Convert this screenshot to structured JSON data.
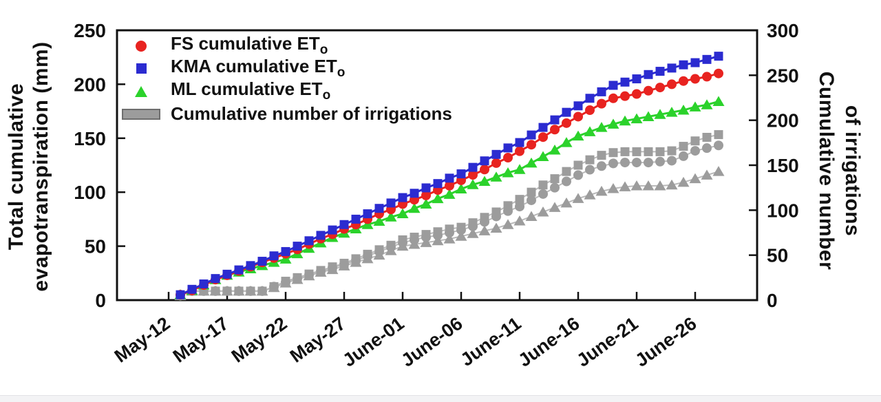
{
  "figure": {
    "left_axis": {
      "title_line1": "Total cumulative",
      "title_line2": "evapotranspiration (mm)"
    },
    "right_axis": {
      "title_line1": "Cumulative number",
      "title_line2": "of irrigations"
    },
    "legend": [
      {
        "label": "FS cumulative ET",
        "sub": "o",
        "marker": "circle-icon",
        "color": "#e82320"
      },
      {
        "label": "KMA cumulative ET",
        "sub": "o",
        "marker": "square-icon",
        "color": "#2b2bd0"
      },
      {
        "label": "ML cumulative ET",
        "sub": "o",
        "marker": "triangle-icon",
        "color": "#2bd22b"
      },
      {
        "label": "Cumulative number of irrigations",
        "sub": "",
        "marker": "bar-icon",
        "color": "#9c9c9c"
      }
    ]
  },
  "chart_data": {
    "type": "line",
    "title": "",
    "xlabel": "",
    "left_ylabel": "Total cumulative evapotranspiration (mm)",
    "right_ylabel": "Cumulative number of irrigations",
    "left_ylim": [
      0,
      250
    ],
    "right_ylim": [
      0,
      300
    ],
    "left_ticks": [
      0,
      50,
      100,
      150,
      200,
      250
    ],
    "right_ticks": [
      0,
      50,
      100,
      150,
      200,
      250,
      300
    ],
    "x_ticks": [
      {
        "label": "May-12",
        "day": 0
      },
      {
        "label": "May-17",
        "day": 5
      },
      {
        "label": "May-22",
        "day": 10
      },
      {
        "label": "May-27",
        "day": 15
      },
      {
        "label": "June-01",
        "day": 20
      },
      {
        "label": "June-06",
        "day": 25
      },
      {
        "label": "June-11",
        "day": 30
      },
      {
        "label": "June-16",
        "day": 35
      },
      {
        "label": "June-21",
        "day": 40
      },
      {
        "label": "June-26",
        "day": 45
      }
    ],
    "x_unit": "days after May-12, daily points from May-13 to June-28",
    "grid": false,
    "legend_position": "upper-left-inside",
    "series": [
      {
        "name": "Cumulative number of irrigations (ML)",
        "axis": "right",
        "marker": "triangle",
        "color": "#9c9c9c",
        "line": true,
        "start_day": 1,
        "values": [
          5,
          10,
          10,
          10,
          10,
          10,
          10,
          10,
          14,
          19,
          23,
          27,
          31,
          34,
          38,
          42,
          46,
          50,
          55,
          60,
          62,
          64,
          66,
          68,
          71,
          74,
          77,
          80,
          84,
          88,
          93,
          98,
          103,
          108,
          113,
          117,
          121,
          124,
          126,
          127,
          127,
          127,
          128,
          131,
          135,
          139,
          143
        ]
      },
      {
        "name": "Cumulative number of irrigations (FS)",
        "axis": "right",
        "marker": "circle",
        "color": "#9c9c9c",
        "line": true,
        "start_day": 1,
        "values": [
          5,
          10,
          10,
          10,
          10,
          10,
          10,
          10,
          15,
          20,
          24,
          28,
          32,
          36,
          40,
          44,
          49,
          54,
          59,
          64,
          67,
          70,
          72,
          75,
          78,
          82,
          87,
          93,
          99,
          104,
          111,
          118,
          125,
          132,
          139,
          145,
          149,
          152,
          153,
          153,
          153,
          154,
          155,
          160,
          166,
          169,
          172
        ]
      },
      {
        "name": "Cumulative number of irrigations (KMA)",
        "axis": "right",
        "marker": "square",
        "color": "#9c9c9c",
        "line": true,
        "start_day": 1,
        "values": [
          5,
          10,
          10,
          10,
          10,
          10,
          10,
          10,
          15,
          21,
          25,
          29,
          33,
          37,
          41,
          46,
          51,
          56,
          61,
          67,
          70,
          73,
          76,
          79,
          81,
          86,
          92,
          98,
          105,
          112,
          120,
          128,
          135,
          143,
          150,
          156,
          161,
          164,
          165,
          165,
          165,
          165,
          166,
          171,
          177,
          181,
          184
        ]
      },
      {
        "name": "ML cumulative ETo",
        "axis": "left",
        "marker": "triangle",
        "color": "#2bd22b",
        "line": true,
        "start_day": 1,
        "values": [
          5,
          9,
          14,
          19,
          23,
          26,
          29,
          32,
          35,
          38,
          43,
          48,
          53,
          58,
          62,
          66,
          70,
          73,
          77,
          80,
          85,
          89,
          94,
          98,
          103,
          107,
          110,
          114,
          118,
          121,
          127,
          133,
          139,
          146,
          152,
          156,
          160,
          163,
          166,
          168,
          170,
          172,
          174,
          176,
          179,
          181,
          184
        ]
      },
      {
        "name": "FS cumulative ETo",
        "axis": "left",
        "marker": "circle",
        "color": "#e82320",
        "line": true,
        "start_day": 1,
        "values": [
          5,
          9,
          14,
          19,
          23,
          27,
          31,
          35,
          39,
          43,
          47,
          52,
          57,
          61,
          66,
          70,
          75,
          80,
          84,
          89,
          93,
          97,
          102,
          106,
          111,
          116,
          121,
          127,
          132,
          138,
          144,
          151,
          158,
          164,
          170,
          176,
          182,
          187,
          189,
          191,
          194,
          197,
          200,
          203,
          205,
          207,
          210
        ]
      },
      {
        "name": "KMA cumulative ETo",
        "axis": "left",
        "marker": "square",
        "color": "#2b2bd0",
        "line": true,
        "start_day": 1,
        "values": [
          5,
          10,
          15,
          20,
          24,
          28,
          32,
          36,
          41,
          45,
          50,
          55,
          60,
          65,
          70,
          75,
          80,
          85,
          90,
          95,
          99,
          104,
          108,
          113,
          117,
          123,
          129,
          135,
          141,
          146,
          153,
          160,
          167,
          174,
          180,
          187,
          193,
          199,
          202,
          205,
          209,
          212,
          215,
          218,
          220,
          223,
          226
        ]
      }
    ]
  }
}
